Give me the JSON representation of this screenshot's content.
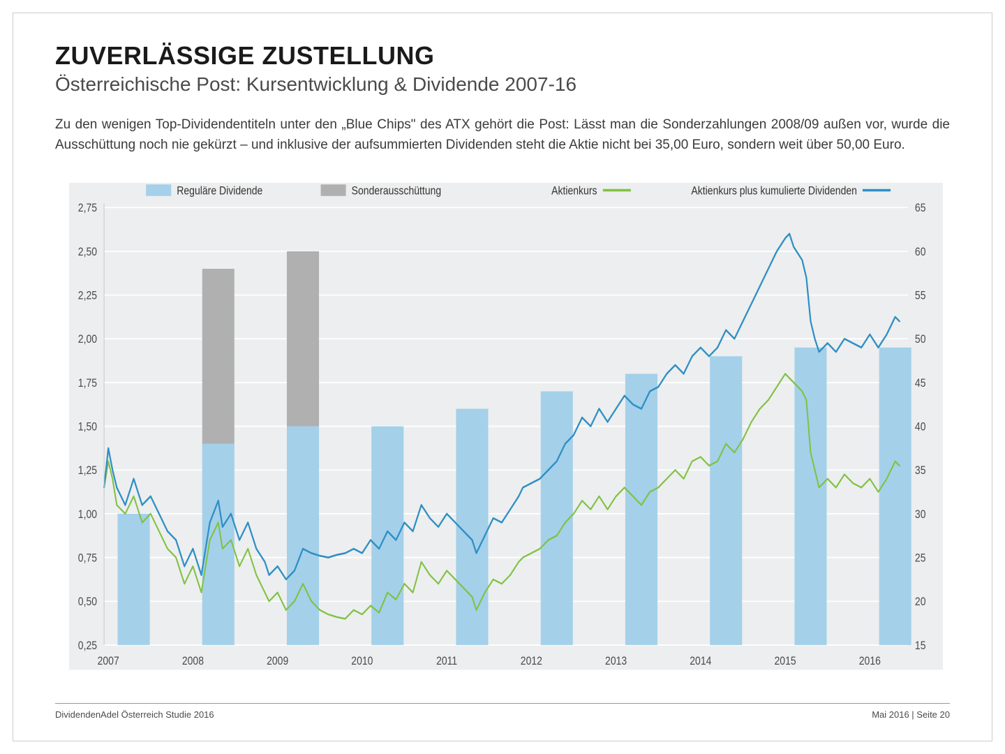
{
  "title": "ZUVERLÄSSIGE ZUSTELLUNG",
  "subtitle": "Österreichische Post: Kursentwicklung & Dividende 2007-16",
  "body_text": "Zu den wenigen Top-Dividendentiteln unter den „Blue Chips\" des ATX gehört die Post: Lässt man die Sonderzahlungen 2008/09 außen vor, wurde die Ausschüttung noch nie gekürzt – und inklusive der aufsummierten Dividenden steht die Aktie nicht bei 35,00 Euro, sondern weit über 50,00 Euro.",
  "footer_left": "DividendenAdel Österreich Studie 2016",
  "footer_right": "Mai 2016 | Seite 20",
  "chart": {
    "type": "combo-bar-line",
    "background_color": "#edeeef",
    "grid_color": "#ffffff",
    "axis_text_color": "#4a4a4a",
    "axis_fontsize": 14,
    "legend_fontsize": 14,
    "left_axis": {
      "min": 0.25,
      "max": 2.75,
      "step": 0.25,
      "labels": [
        "0,25",
        "0,50",
        "0,75",
        "1,00",
        "1,25",
        "1,50",
        "1,75",
        "2,00",
        "2,25",
        "2,50",
        "2,75"
      ]
    },
    "right_axis": {
      "min": 15,
      "max": 65,
      "step": 5,
      "labels": [
        "15",
        "20",
        "25",
        "30",
        "35",
        "40",
        "45",
        "50",
        "55",
        "60",
        "65"
      ]
    },
    "x_axis": {
      "years": [
        2007,
        2008,
        2009,
        2010,
        2011,
        2012,
        2013,
        2014,
        2015,
        2016
      ]
    },
    "bars": {
      "regular": {
        "label": "Reguläre Dividende",
        "color": "#a4d0ea",
        "values_by_year": {
          "2007": 1.0,
          "2008": 1.4,
          "2009": 1.5,
          "2010": 1.5,
          "2011": 1.6,
          "2012": 1.7,
          "2013": 1.8,
          "2014": 1.9,
          "2015": 1.95,
          "2016": 1.95
        }
      },
      "special": {
        "label": "Sonderausschüttung",
        "color": "#b0b0b0",
        "values_by_year": {
          "2008": 1.0,
          "2009": 1.0
        }
      },
      "bar_width_frac": 0.38
    },
    "lines": {
      "price": {
        "label": "Aktienkurs",
        "color": "#7fc241",
        "width": 2,
        "points": [
          [
            2007.0,
            33
          ],
          [
            2007.05,
            36
          ],
          [
            2007.1,
            34
          ],
          [
            2007.15,
            31
          ],
          [
            2007.25,
            30
          ],
          [
            2007.35,
            32
          ],
          [
            2007.45,
            29
          ],
          [
            2007.55,
            30
          ],
          [
            2007.65,
            28
          ],
          [
            2007.75,
            26
          ],
          [
            2007.85,
            25
          ],
          [
            2007.95,
            22
          ],
          [
            2008.05,
            24
          ],
          [
            2008.15,
            21
          ],
          [
            2008.25,
            27
          ],
          [
            2008.35,
            29
          ],
          [
            2008.4,
            26
          ],
          [
            2008.5,
            27
          ],
          [
            2008.6,
            24
          ],
          [
            2008.7,
            26
          ],
          [
            2008.8,
            23
          ],
          [
            2008.9,
            21
          ],
          [
            2008.95,
            20
          ],
          [
            2009.05,
            21
          ],
          [
            2009.15,
            19
          ],
          [
            2009.25,
            20
          ],
          [
            2009.35,
            22
          ],
          [
            2009.45,
            20
          ],
          [
            2009.55,
            19
          ],
          [
            2009.65,
            18.5
          ],
          [
            2009.75,
            18.2
          ],
          [
            2009.85,
            18
          ],
          [
            2009.95,
            19
          ],
          [
            2010.05,
            18.5
          ],
          [
            2010.15,
            19.5
          ],
          [
            2010.25,
            18.7
          ],
          [
            2010.35,
            21
          ],
          [
            2010.45,
            20.2
          ],
          [
            2010.55,
            22
          ],
          [
            2010.65,
            21
          ],
          [
            2010.75,
            24.5
          ],
          [
            2010.85,
            23
          ],
          [
            2010.95,
            22
          ],
          [
            2011.05,
            23.5
          ],
          [
            2011.15,
            22.5
          ],
          [
            2011.25,
            21.5
          ],
          [
            2011.35,
            20.5
          ],
          [
            2011.4,
            19
          ],
          [
            2011.5,
            21
          ],
          [
            2011.6,
            22.5
          ],
          [
            2011.7,
            22
          ],
          [
            2011.8,
            23
          ],
          [
            2011.9,
            24.5
          ],
          [
            2011.95,
            25
          ],
          [
            2012.05,
            25.5
          ],
          [
            2012.15,
            26
          ],
          [
            2012.25,
            27
          ],
          [
            2012.35,
            27.5
          ],
          [
            2012.45,
            29
          ],
          [
            2012.55,
            30
          ],
          [
            2012.65,
            31.5
          ],
          [
            2012.75,
            30.5
          ],
          [
            2012.85,
            32
          ],
          [
            2012.95,
            30.5
          ],
          [
            2013.05,
            32
          ],
          [
            2013.15,
            33
          ],
          [
            2013.25,
            32
          ],
          [
            2013.35,
            31
          ],
          [
            2013.45,
            32.5
          ],
          [
            2013.55,
            33
          ],
          [
            2013.65,
            34
          ],
          [
            2013.75,
            35
          ],
          [
            2013.85,
            34
          ],
          [
            2013.95,
            36
          ],
          [
            2014.05,
            36.5
          ],
          [
            2014.15,
            35.5
          ],
          [
            2014.25,
            36
          ],
          [
            2014.35,
            38
          ],
          [
            2014.45,
            37
          ],
          [
            2014.55,
            38.5
          ],
          [
            2014.65,
            40.5
          ],
          [
            2014.75,
            42
          ],
          [
            2014.85,
            43
          ],
          [
            2014.95,
            44.5
          ],
          [
            2015.05,
            46
          ],
          [
            2015.15,
            45
          ],
          [
            2015.25,
            44
          ],
          [
            2015.3,
            43
          ],
          [
            2015.35,
            37
          ],
          [
            2015.4,
            35
          ],
          [
            2015.45,
            33
          ],
          [
            2015.55,
            34
          ],
          [
            2015.65,
            33
          ],
          [
            2015.75,
            34.5
          ],
          [
            2015.85,
            33.5
          ],
          [
            2015.95,
            33
          ],
          [
            2016.05,
            34
          ],
          [
            2016.15,
            32.5
          ],
          [
            2016.25,
            34
          ],
          [
            2016.35,
            36
          ],
          [
            2016.4,
            35.5
          ]
        ]
      },
      "price_cum": {
        "label": "Aktienkurs plus kumulierte Dividenden",
        "color": "#2e8fc4",
        "width": 2.2,
        "points": [
          [
            2007.0,
            33
          ],
          [
            2007.05,
            37.5
          ],
          [
            2007.1,
            35
          ],
          [
            2007.15,
            33
          ],
          [
            2007.25,
            31
          ],
          [
            2007.35,
            34
          ],
          [
            2007.45,
            31
          ],
          [
            2007.55,
            32
          ],
          [
            2007.65,
            30
          ],
          [
            2007.75,
            28
          ],
          [
            2007.85,
            27
          ],
          [
            2007.95,
            24
          ],
          [
            2008.05,
            26
          ],
          [
            2008.15,
            23
          ],
          [
            2008.25,
            29
          ],
          [
            2008.35,
            31.5
          ],
          [
            2008.4,
            28.5
          ],
          [
            2008.5,
            30
          ],
          [
            2008.6,
            27
          ],
          [
            2008.7,
            29
          ],
          [
            2008.8,
            26
          ],
          [
            2008.9,
            24.5
          ],
          [
            2008.95,
            23
          ],
          [
            2009.05,
            24
          ],
          [
            2009.15,
            22.5
          ],
          [
            2009.25,
            23.5
          ],
          [
            2009.35,
            26
          ],
          [
            2009.45,
            25.5
          ],
          [
            2009.55,
            25.2
          ],
          [
            2009.65,
            25
          ],
          [
            2009.75,
            25.3
          ],
          [
            2009.85,
            25.5
          ],
          [
            2009.95,
            26
          ],
          [
            2010.05,
            25.5
          ],
          [
            2010.15,
            27
          ],
          [
            2010.25,
            26
          ],
          [
            2010.35,
            28
          ],
          [
            2010.45,
            27
          ],
          [
            2010.55,
            29
          ],
          [
            2010.65,
            28
          ],
          [
            2010.75,
            31
          ],
          [
            2010.85,
            29.5
          ],
          [
            2010.95,
            28.5
          ],
          [
            2011.05,
            30
          ],
          [
            2011.15,
            29
          ],
          [
            2011.25,
            28
          ],
          [
            2011.35,
            27
          ],
          [
            2011.4,
            25.5
          ],
          [
            2011.5,
            27.5
          ],
          [
            2011.6,
            29.5
          ],
          [
            2011.7,
            29
          ],
          [
            2011.8,
            30.5
          ],
          [
            2011.9,
            32
          ],
          [
            2011.95,
            33
          ],
          [
            2012.05,
            33.5
          ],
          [
            2012.15,
            34
          ],
          [
            2012.25,
            35
          ],
          [
            2012.35,
            36
          ],
          [
            2012.45,
            38
          ],
          [
            2012.55,
            39
          ],
          [
            2012.65,
            41
          ],
          [
            2012.75,
            40
          ],
          [
            2012.85,
            42
          ],
          [
            2012.95,
            40.5
          ],
          [
            2013.05,
            42
          ],
          [
            2013.15,
            43.5
          ],
          [
            2013.25,
            42.5
          ],
          [
            2013.35,
            42
          ],
          [
            2013.45,
            44
          ],
          [
            2013.55,
            44.5
          ],
          [
            2013.65,
            46
          ],
          [
            2013.75,
            47
          ],
          [
            2013.85,
            46
          ],
          [
            2013.95,
            48
          ],
          [
            2014.05,
            49
          ],
          [
            2014.15,
            48
          ],
          [
            2014.25,
            49
          ],
          [
            2014.35,
            51
          ],
          [
            2014.45,
            50
          ],
          [
            2014.55,
            52
          ],
          [
            2014.65,
            54
          ],
          [
            2014.75,
            56
          ],
          [
            2014.85,
            58
          ],
          [
            2014.95,
            60
          ],
          [
            2015.05,
            61.5
          ],
          [
            2015.1,
            62
          ],
          [
            2015.15,
            60.5
          ],
          [
            2015.25,
            59
          ],
          [
            2015.3,
            57
          ],
          [
            2015.35,
            52
          ],
          [
            2015.4,
            50
          ],
          [
            2015.45,
            48.5
          ],
          [
            2015.55,
            49.5
          ],
          [
            2015.65,
            48.5
          ],
          [
            2015.75,
            50
          ],
          [
            2015.85,
            49.5
          ],
          [
            2015.95,
            49
          ],
          [
            2016.05,
            50.5
          ],
          [
            2016.15,
            49
          ],
          [
            2016.25,
            50.5
          ],
          [
            2016.35,
            52.5
          ],
          [
            2016.4,
            52
          ]
        ]
      }
    },
    "legend": [
      {
        "kind": "swatch",
        "color": "#a4d0ea",
        "label_key": "chart.bars.regular.label"
      },
      {
        "kind": "swatch",
        "color": "#b0b0b0",
        "label_key": "chart.bars.special.label"
      },
      {
        "kind": "line",
        "color": "#7fc241",
        "label_key": "chart.lines.price.label"
      },
      {
        "kind": "line",
        "color": "#2e8fc4",
        "label_key": "chart.lines.price_cum.label"
      }
    ]
  }
}
